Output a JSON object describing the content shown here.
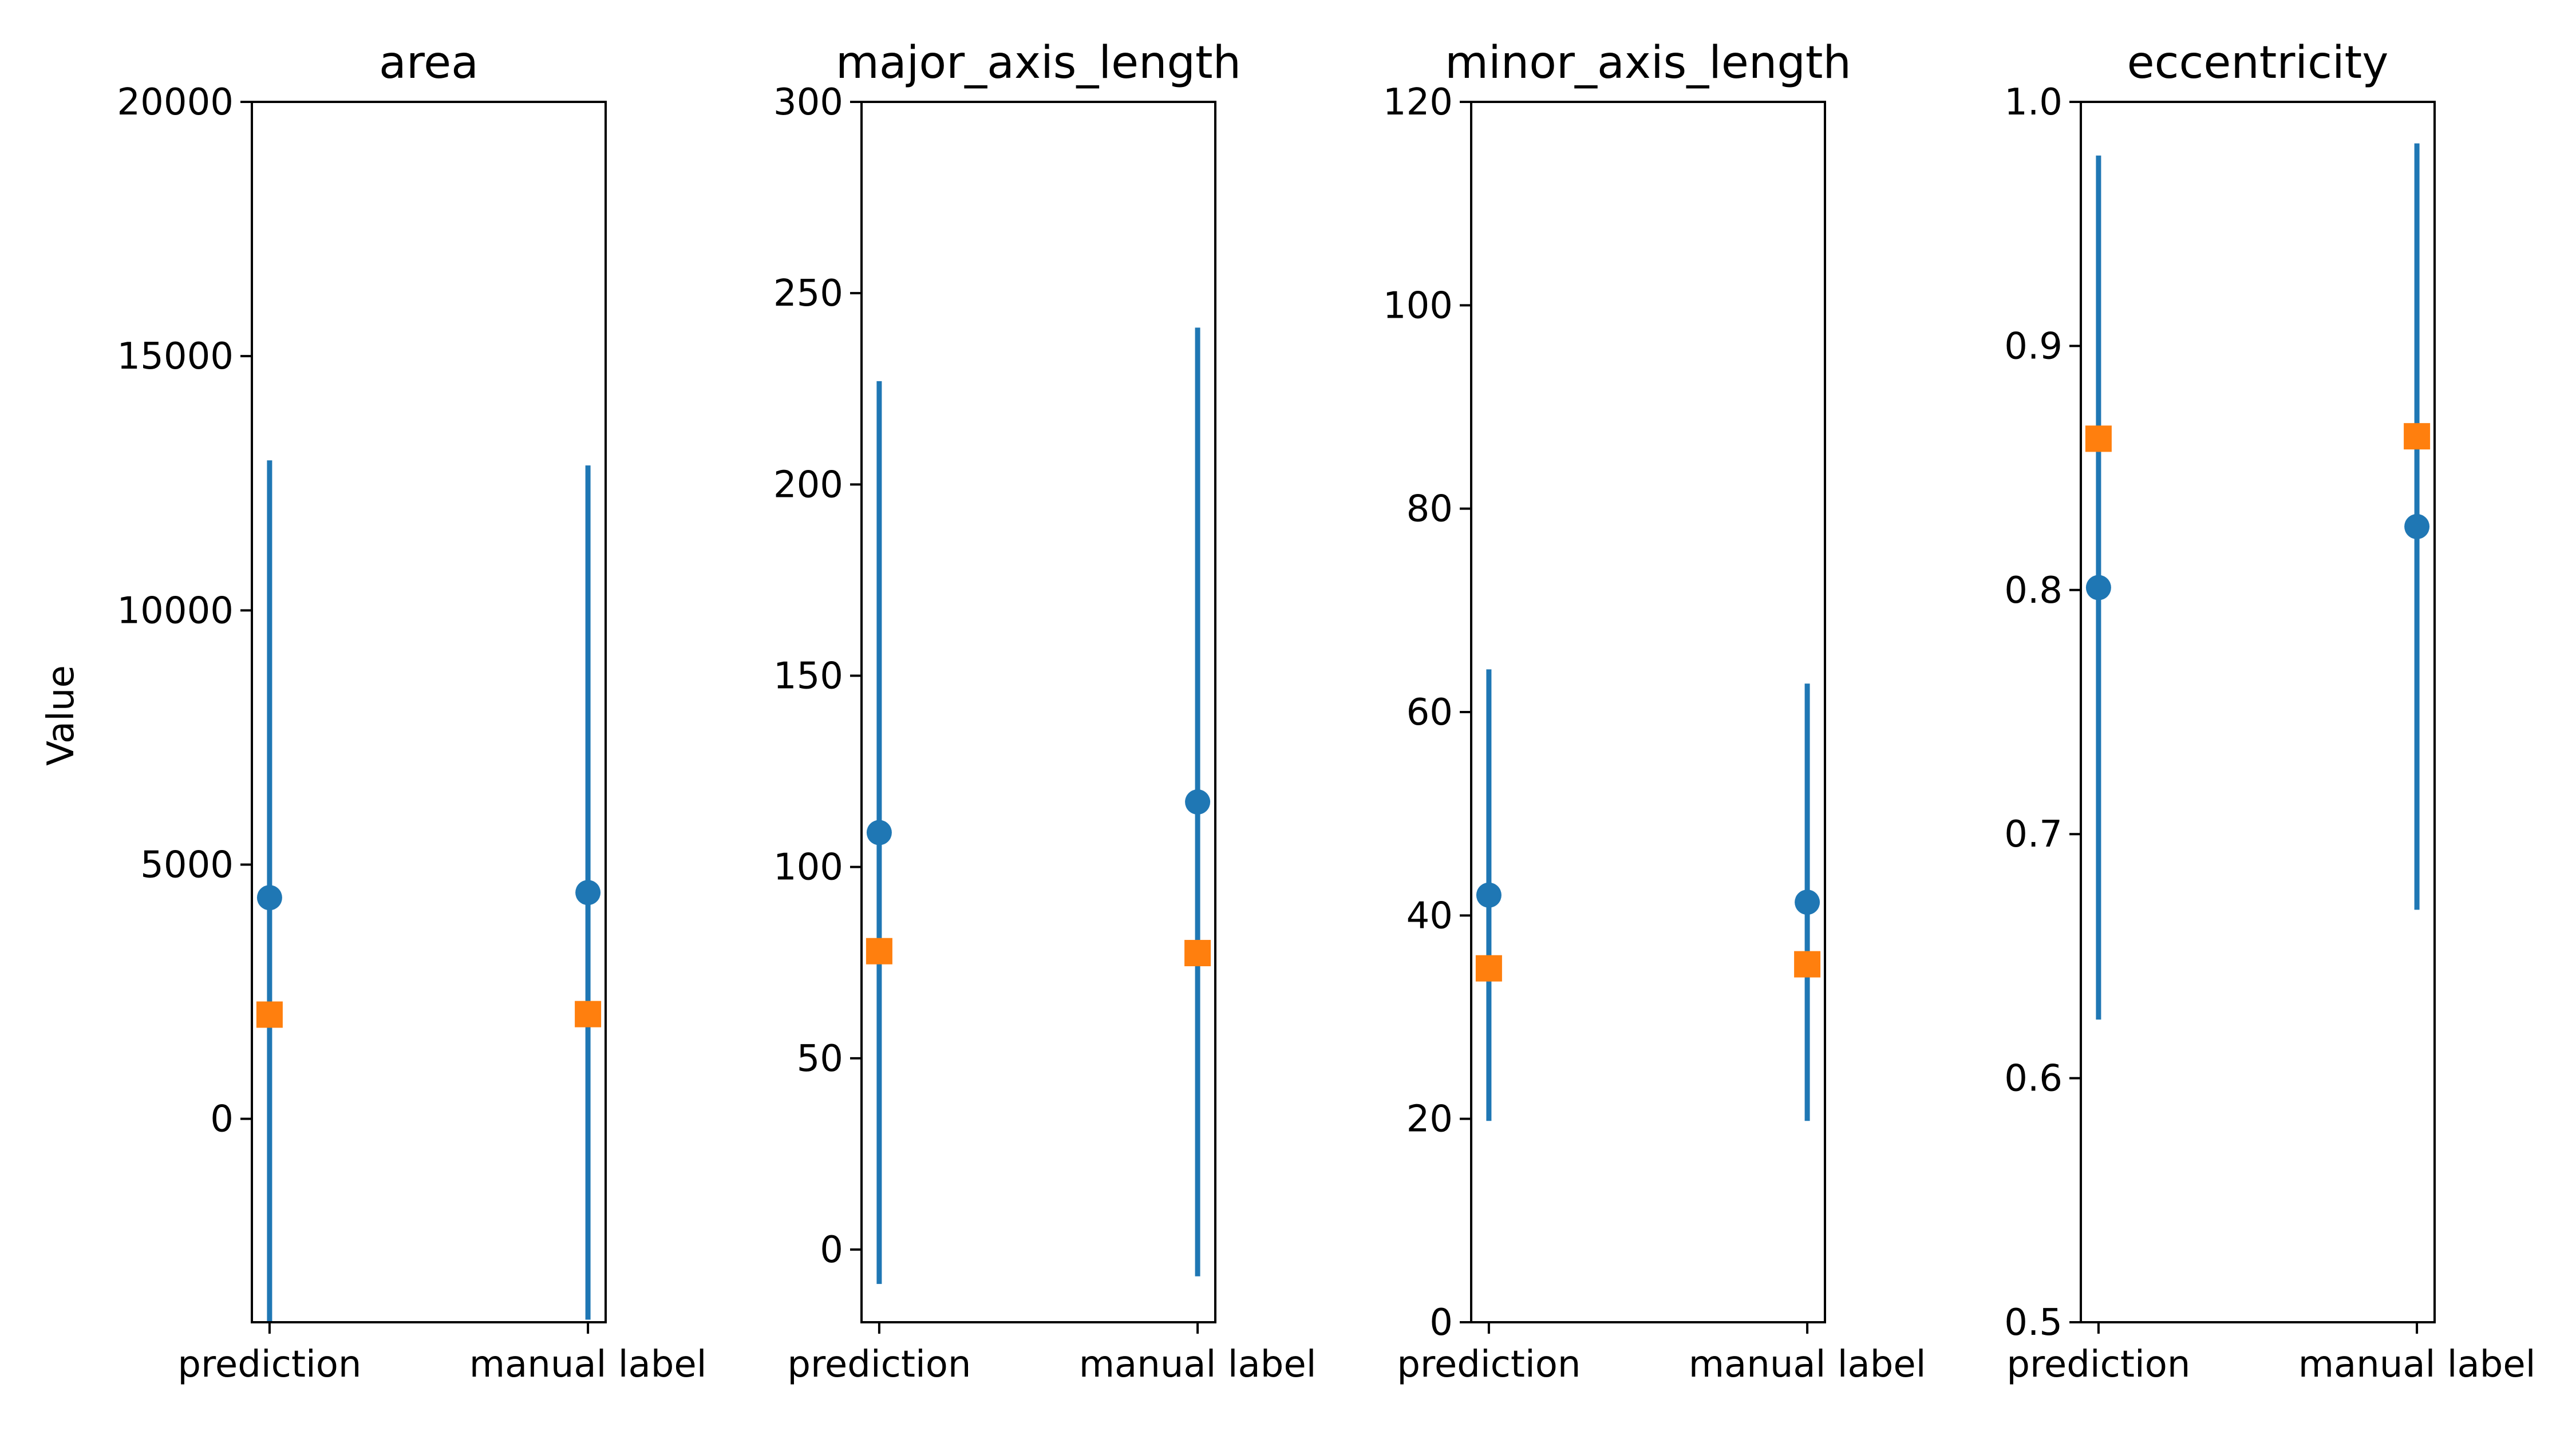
{
  "figure": {
    "ylabel": "Value",
    "colors": {
      "mean": "#1f77b4",
      "median": "#ff7f0e"
    }
  },
  "chart_data": [
    {
      "type": "scatter",
      "title": "area",
      "categories": [
        "prediction",
        "manual label"
      ],
      "ylim": [
        -4000,
        20000
      ],
      "yticks": [
        0,
        5000,
        10000,
        15000,
        20000
      ],
      "ytick_labels": [
        "0",
        "5000",
        "10000",
        "15000",
        "20000"
      ],
      "mean": [
        4350,
        4450
      ],
      "std": [
        8600,
        8400
      ],
      "median": [
        2050,
        2060
      ]
    },
    {
      "type": "scatter",
      "title": "major_axis_length",
      "categories": [
        "prediction",
        "manual label"
      ],
      "ylim": [
        -19,
        300
      ],
      "yticks": [
        0,
        50,
        100,
        150,
        200,
        250,
        300
      ],
      "ytick_labels": [
        "0",
        "50",
        "100",
        "150",
        "200",
        "250",
        "300"
      ],
      "mean": [
        109,
        117
      ],
      "std": [
        118,
        124
      ],
      "median": [
        78,
        77.5
      ]
    },
    {
      "type": "scatter",
      "title": "minor_axis_length",
      "categories": [
        "prediction",
        "manual label"
      ],
      "ylim": [
        0,
        120
      ],
      "yticks": [
        0,
        20,
        40,
        60,
        80,
        100,
        120
      ],
      "ytick_labels": [
        "0",
        "20",
        "40",
        "60",
        "80",
        "100",
        "120"
      ],
      "mean": [
        42,
        41.3
      ],
      "std": [
        22.2,
        21.5
      ],
      "median": [
        34.8,
        35.2
      ]
    },
    {
      "type": "scatter",
      "title": "eccentricity",
      "categories": [
        "prediction",
        "manual label"
      ],
      "ylim": [
        0.5,
        1.0
      ],
      "yticks": [
        0.5,
        0.6,
        0.7,
        0.8,
        0.9,
        1.0
      ],
      "ytick_labels": [
        "0.5",
        "0.6",
        "0.7",
        "0.8",
        "0.9",
        "1.0"
      ],
      "mean": [
        0.801,
        0.826
      ],
      "std": [
        0.177,
        0.157
      ],
      "median": [
        0.862,
        0.863
      ]
    }
  ]
}
